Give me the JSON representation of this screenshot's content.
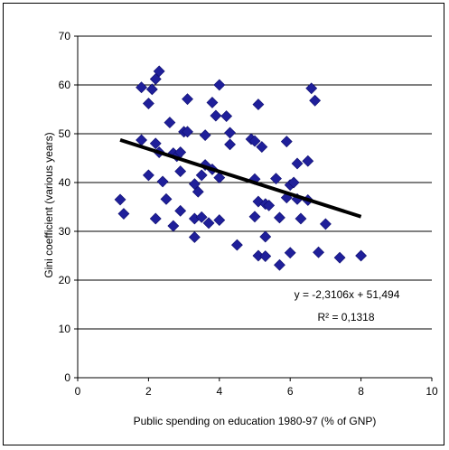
{
  "colors": {
    "marker": "#1f1f9a",
    "trendline": "#000000",
    "grid": "#000000",
    "background": "#ffffff"
  },
  "chart_data": {
    "type": "scatter",
    "title": "",
    "xlabel": "Public spending on education 1980-97 (% of GNP)",
    "ylabel": "Gini coefficient (various years)",
    "xlim": [
      0,
      10
    ],
    "ylim": [
      0,
      70
    ],
    "xticks": [
      0,
      2,
      4,
      6,
      8,
      10
    ],
    "yticks": [
      0,
      10,
      20,
      30,
      40,
      50,
      60,
      70
    ],
    "grid": "horizontal",
    "legend": "none",
    "marker": "diamond",
    "points": [
      [
        1.2,
        36.5
      ],
      [
        1.3,
        33.6
      ],
      [
        1.8,
        59.5
      ],
      [
        1.8,
        48.7
      ],
      [
        2.0,
        56.2
      ],
      [
        2.0,
        41.5
      ],
      [
        2.1,
        59.1
      ],
      [
        2.2,
        32.6
      ],
      [
        2.2,
        48.0
      ],
      [
        2.2,
        61.2
      ],
      [
        2.3,
        62.8
      ],
      [
        2.3,
        46.2
      ],
      [
        2.4,
        40.2
      ],
      [
        2.5,
        36.6
      ],
      [
        2.6,
        52.3
      ],
      [
        2.7,
        31.1
      ],
      [
        2.7,
        46.0
      ],
      [
        2.8,
        45.4
      ],
      [
        2.9,
        34.2
      ],
      [
        2.9,
        42.3
      ],
      [
        2.9,
        46.2
      ],
      [
        3.0,
        50.4
      ],
      [
        3.1,
        57.1
      ],
      [
        3.1,
        50.4
      ],
      [
        3.3,
        32.6
      ],
      [
        3.3,
        28.8
      ],
      [
        3.3,
        39.7
      ],
      [
        3.4,
        38.1
      ],
      [
        3.5,
        32.9
      ],
      [
        3.5,
        41.5
      ],
      [
        3.6,
        43.6
      ],
      [
        3.6,
        49.7
      ],
      [
        3.7,
        31.7
      ],
      [
        3.8,
        56.4
      ],
      [
        3.8,
        42.7
      ],
      [
        3.9,
        53.7
      ],
      [
        4.0,
        60.0
      ],
      [
        4.0,
        32.3
      ],
      [
        4.0,
        41.0
      ],
      [
        4.2,
        53.6
      ],
      [
        4.3,
        47.8
      ],
      [
        4.3,
        50.2
      ],
      [
        4.5,
        27.2
      ],
      [
        4.9,
        48.9
      ],
      [
        5.0,
        48.5
      ],
      [
        5.0,
        33.0
      ],
      [
        5.0,
        40.7
      ],
      [
        5.1,
        56.0
      ],
      [
        5.1,
        25.0
      ],
      [
        5.1,
        36.1
      ],
      [
        5.2,
        47.3
      ],
      [
        5.3,
        24.9
      ],
      [
        5.3,
        28.9
      ],
      [
        5.3,
        35.6
      ],
      [
        5.4,
        35.3
      ],
      [
        5.6,
        40.8
      ],
      [
        5.7,
        23.1
      ],
      [
        5.7,
        32.8
      ],
      [
        5.9,
        48.4
      ],
      [
        5.9,
        36.9
      ],
      [
        6.0,
        25.6
      ],
      [
        6.0,
        39.5
      ],
      [
        6.1,
        40.0
      ],
      [
        6.2,
        43.9
      ],
      [
        6.2,
        36.6
      ],
      [
        6.3,
        32.6
      ],
      [
        6.5,
        44.4
      ],
      [
        6.5,
        36.4
      ],
      [
        6.6,
        59.3
      ],
      [
        6.7,
        56.8
      ],
      [
        6.8,
        25.7
      ],
      [
        7.0,
        31.5
      ],
      [
        7.4,
        24.6
      ],
      [
        8.0,
        25.0
      ]
    ],
    "trendline": {
      "type": "linear",
      "slope": -2.3106,
      "intercept": 51.494,
      "x_range": [
        1.2,
        8.0
      ],
      "equation": "y = -2,3106x + 51,494",
      "r2": "R² = 0,1318"
    }
  }
}
